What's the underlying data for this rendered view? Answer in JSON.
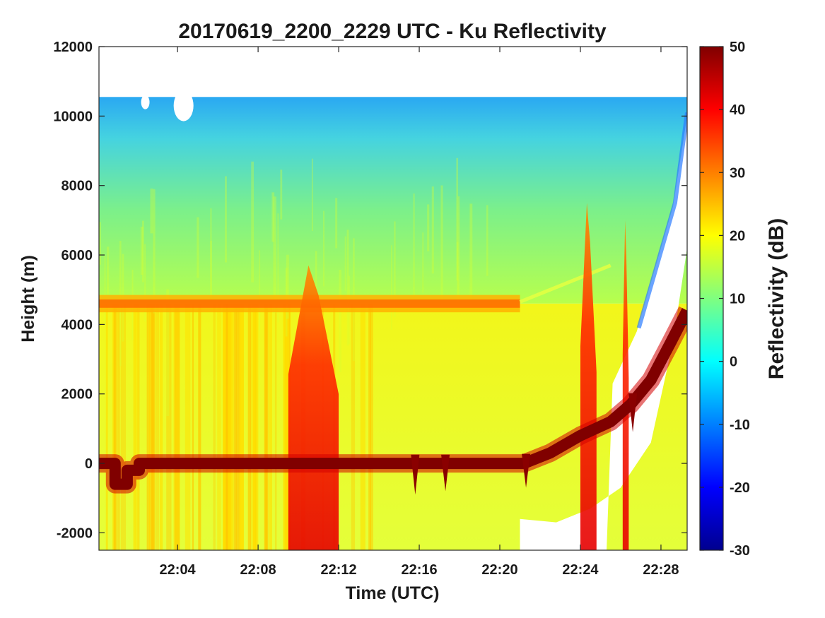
{
  "chart_data": {
    "type": "heatmap",
    "title": "20170619_2200_2229 UTC - Ku Reflectivity",
    "xlabel": "Time (UTC)",
    "ylabel": "Height (m)",
    "colorbar_label": "Reflectivity (dB)",
    "x_range_minutes": [
      0.1,
      29.3
    ],
    "x_ticks": [
      {
        "minute": 4,
        "label": "22:04"
      },
      {
        "minute": 8,
        "label": "22:08"
      },
      {
        "minute": 12,
        "label": "22:12"
      },
      {
        "minute": 16,
        "label": "22:16"
      },
      {
        "minute": 20,
        "label": "22:20"
      },
      {
        "minute": 24,
        "label": "22:24"
      },
      {
        "minute": 28,
        "label": "22:28"
      }
    ],
    "y_range": [
      -2500,
      12000
    ],
    "y_ticks": [
      {
        "value": 12000,
        "label": "12000"
      },
      {
        "value": 10000,
        "label": "10000"
      },
      {
        "value": 8000,
        "label": "8000"
      },
      {
        "value": 6000,
        "label": "6000"
      },
      {
        "value": 4000,
        "label": "4000"
      },
      {
        "value": 2000,
        "label": "2000"
      },
      {
        "value": 0,
        "label": "0"
      },
      {
        "value": -2000,
        "label": "-2000"
      }
    ],
    "c_range": [
      -30,
      50
    ],
    "c_ticks": [
      {
        "value": 50,
        "label": "50"
      },
      {
        "value": 40,
        "label": "40"
      },
      {
        "value": 30,
        "label": "30"
      },
      {
        "value": 20,
        "label": "20"
      },
      {
        "value": 10,
        "label": "10"
      },
      {
        "value": 0,
        "label": "0"
      },
      {
        "value": -10,
        "label": "-10"
      },
      {
        "value": -20,
        "label": "-20"
      },
      {
        "value": -30,
        "label": "-30"
      }
    ],
    "colormap": "jet",
    "data_top_height": 10550,
    "melting_layer": {
      "start_minute": 0.1,
      "end_minute": 21.0,
      "height": 4600,
      "reflectivity": 30,
      "faint_extension": [
        [
          21.0,
          4650
        ],
        [
          25.5,
          5700
        ]
      ]
    },
    "surface_echo": {
      "reflectivity": 50,
      "path": [
        [
          0.1,
          0
        ],
        [
          0.9,
          0
        ],
        [
          0.9,
          -600
        ],
        [
          1.5,
          -600
        ],
        [
          1.5,
          -200
        ],
        [
          2.1,
          -200
        ],
        [
          2.1,
          0
        ],
        [
          21.2,
          0
        ],
        [
          22.5,
          300
        ],
        [
          24.0,
          800
        ],
        [
          25.5,
          1200
        ],
        [
          26.5,
          1700
        ],
        [
          27.5,
          2400
        ],
        [
          28.5,
          3500
        ],
        [
          29.3,
          4400
        ]
      ]
    },
    "dips": [
      {
        "minute": 15.8,
        "depth": -900
      },
      {
        "minute": 17.3,
        "depth": -800
      },
      {
        "minute": 21.3,
        "depth": -700
      },
      {
        "minute": 26.6,
        "depth": 900
      }
    ],
    "convective_cores": [
      {
        "start_minute": 9.5,
        "end_minute": 12.0,
        "top": 5700,
        "reflectivity": 40
      },
      {
        "start_minute": 24.0,
        "end_minute": 24.8,
        "top": 7500,
        "reflectivity": 40
      },
      {
        "start_minute": 26.1,
        "end_minute": 26.4,
        "top": 7000,
        "reflectivity": 40
      }
    ]
  }
}
